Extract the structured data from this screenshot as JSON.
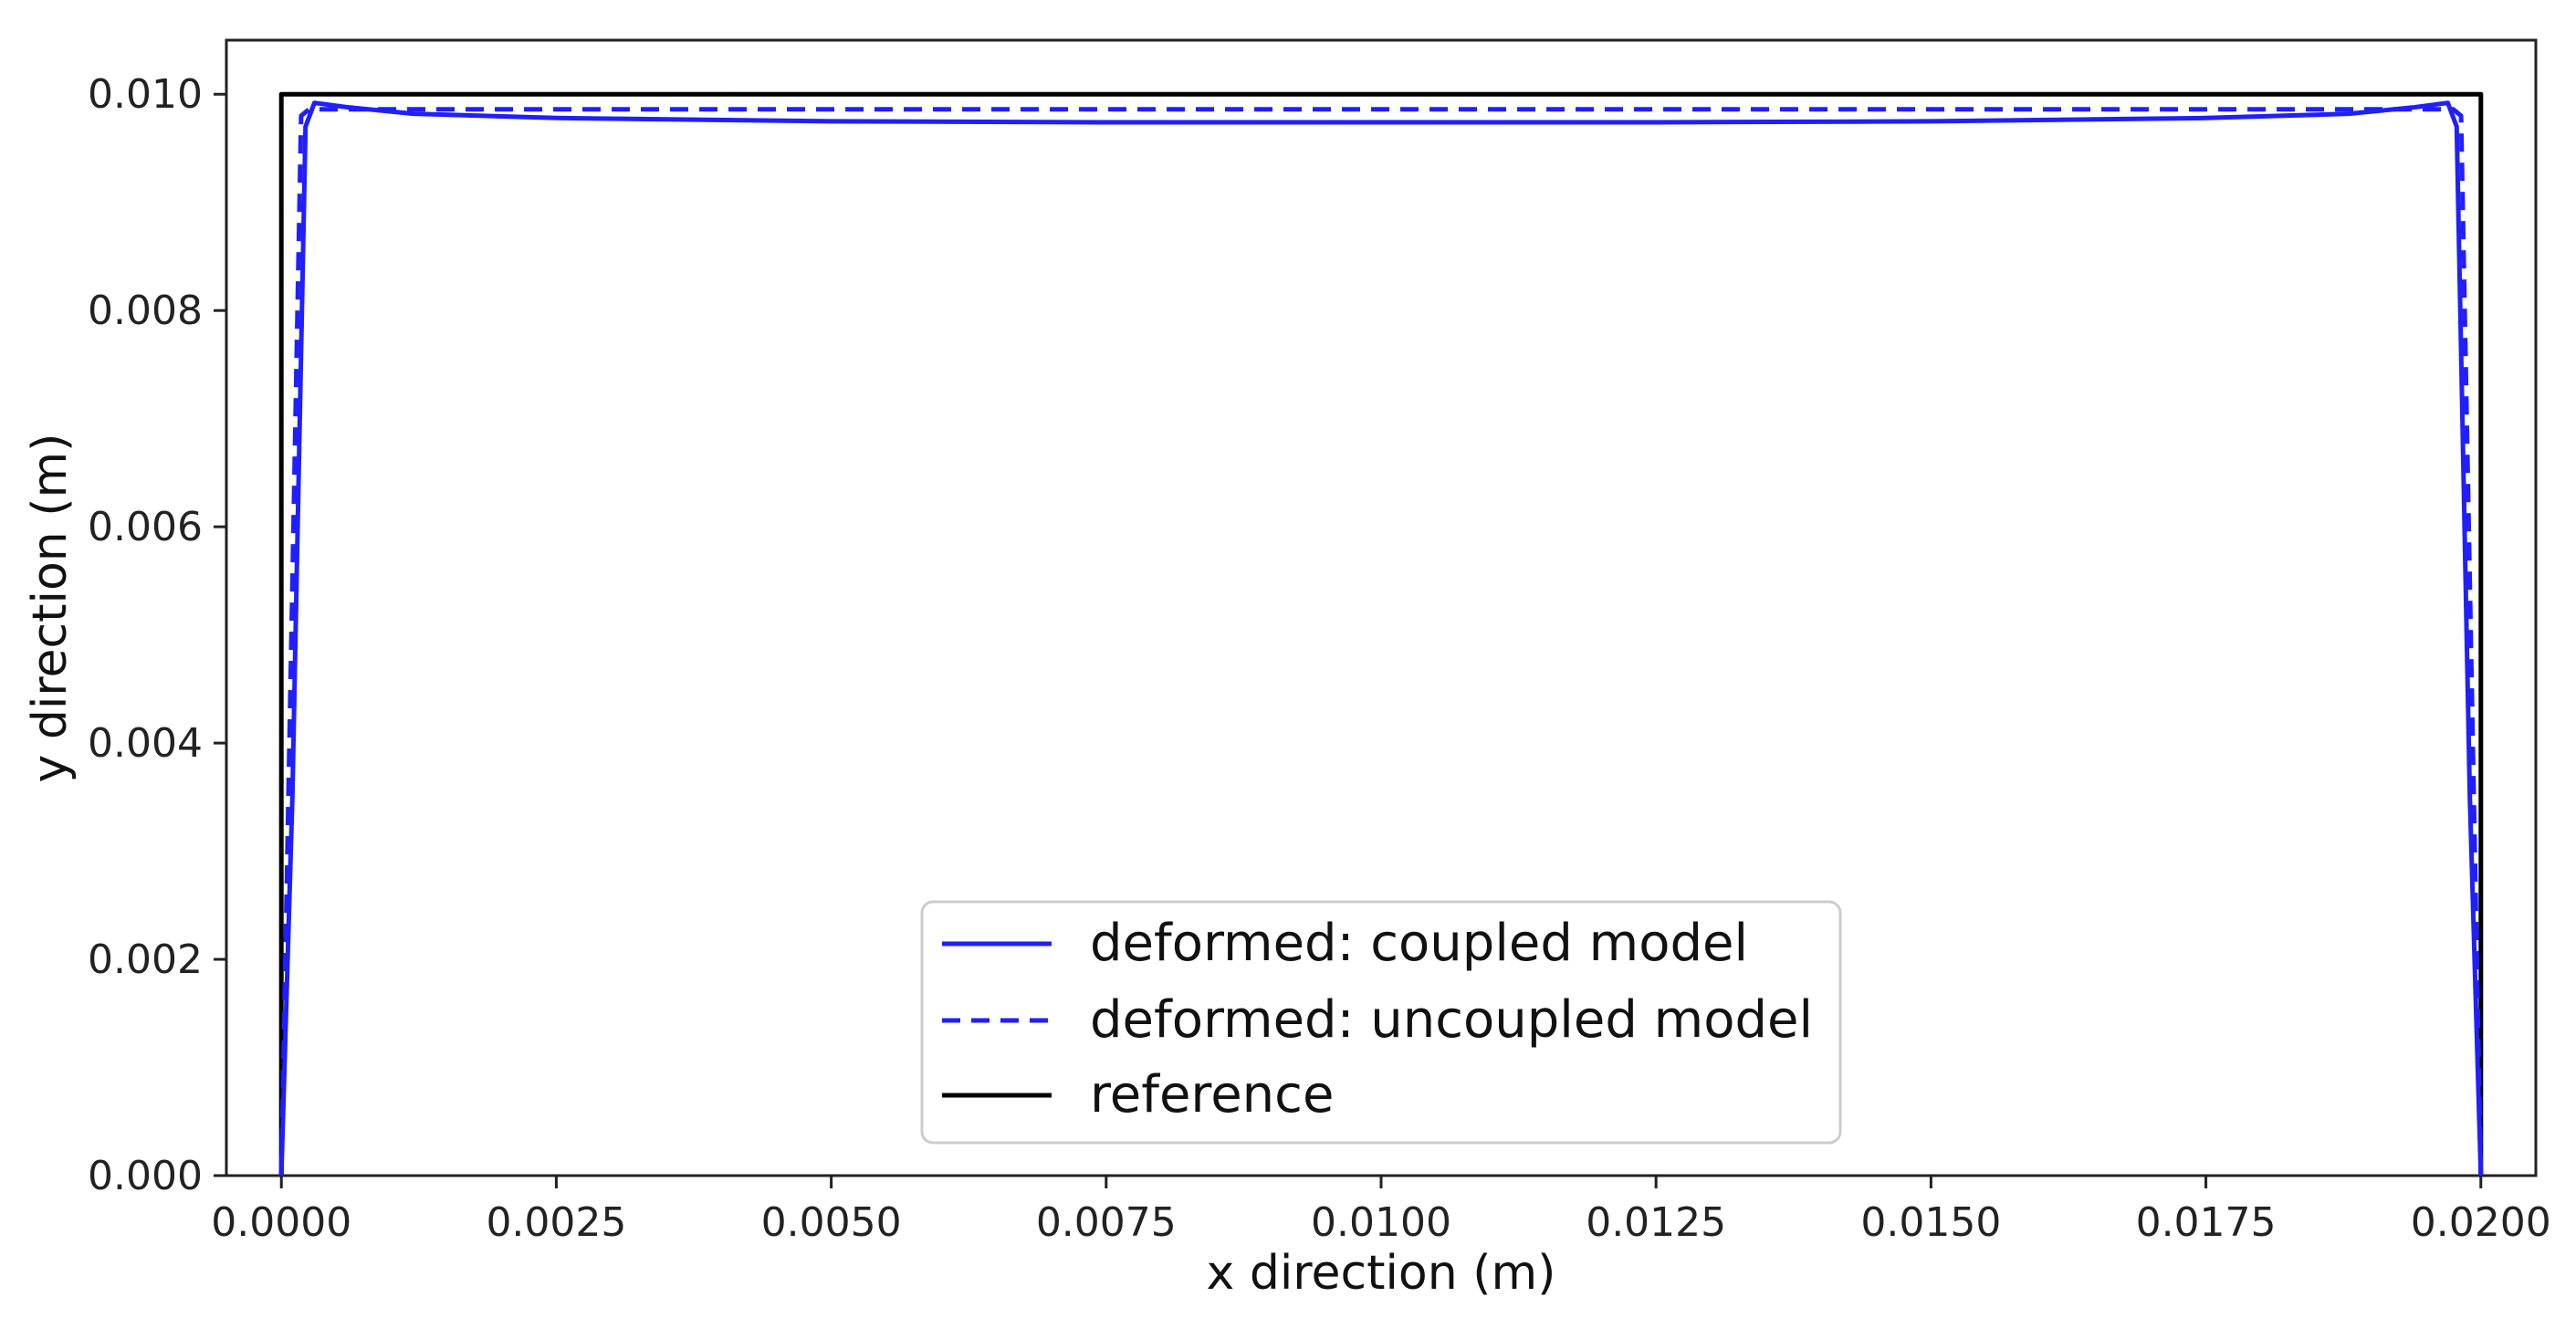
{
  "chart_data": {
    "type": "line",
    "title": "",
    "xlabel": "x direction (m)",
    "ylabel": "y direction (m)",
    "xlim": [
      -0.0005,
      0.0205
    ],
    "ylim": [
      0.0,
      0.0105
    ],
    "x_ticks": [
      0.0,
      0.0025,
      0.005,
      0.0075,
      0.01,
      0.0125,
      0.015,
      0.0175,
      0.02
    ],
    "x_tick_labels": [
      "0.0000",
      "0.0025",
      "0.0050",
      "0.0075",
      "0.0100",
      "0.0125",
      "0.0150",
      "0.0175",
      "0.0200"
    ],
    "y_ticks": [
      0.0,
      0.002,
      0.004,
      0.006,
      0.008,
      0.01
    ],
    "y_tick_labels": [
      "0.000",
      "0.002",
      "0.004",
      "0.006",
      "0.008",
      "0.010"
    ],
    "grid": false,
    "legend_placement": "lower center",
    "series": [
      {
        "name": "deformed: coupled model",
        "color": "#1f1fff",
        "style": "solid",
        "x": [
          0.0,
          0.0001,
          0.00022,
          0.0003,
          0.0006,
          0.0012,
          0.0025,
          0.005,
          0.0075,
          0.01,
          0.0125,
          0.015,
          0.0175,
          0.0188,
          0.0194,
          0.0197,
          0.01978,
          0.0199,
          0.02
        ],
        "y": [
          0.0,
          0.0035,
          0.0097,
          0.00992,
          0.00988,
          0.00982,
          0.00978,
          0.00975,
          0.00974,
          0.00974,
          0.00974,
          0.00975,
          0.00978,
          0.00982,
          0.00988,
          0.00992,
          0.0097,
          0.0035,
          0.0
        ]
      },
      {
        "name": "deformed: uncoupled model",
        "color": "#1f1fff",
        "style": "dashed",
        "x": [
          0.0,
          0.00018,
          0.00025,
          0.005,
          0.01,
          0.015,
          0.01975,
          0.01982,
          0.02
        ],
        "y": [
          0.0,
          0.0098,
          0.00986,
          0.00986,
          0.00986,
          0.00986,
          0.00986,
          0.0098,
          0.0
        ]
      },
      {
        "name": "reference",
        "color": "#000000",
        "style": "solid",
        "x": [
          0.0,
          0.0,
          0.02,
          0.02
        ],
        "y": [
          0.0,
          0.01,
          0.01,
          0.0
        ]
      }
    ]
  }
}
